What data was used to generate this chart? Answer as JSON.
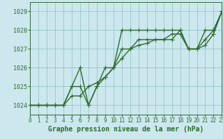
{
  "bg_color": "#cce8ee",
  "grid_color": "#99cccc",
  "line_color": "#2d6a2d",
  "title": "Graphe pression niveau de la mer (hPa)",
  "xlim": [
    0,
    23
  ],
  "ylim": [
    1023.5,
    1029.5
  ],
  "yticks": [
    1024,
    1025,
    1026,
    1027,
    1028,
    1029
  ],
  "xticks": [
    0,
    1,
    2,
    3,
    4,
    5,
    6,
    7,
    8,
    9,
    10,
    11,
    12,
    13,
    14,
    15,
    16,
    17,
    18,
    19,
    20,
    21,
    22,
    23
  ],
  "series": [
    [
      1024.0,
      1024.0,
      1024.0,
      1024.0,
      1024.0,
      1025.0,
      1026.0,
      1024.0,
      1025.0,
      1026.0,
      1026.0,
      1028.0,
      1028.0,
      1028.0,
      1028.0,
      1028.0,
      1028.0,
      1028.0,
      1028.0,
      1027.0,
      1027.0,
      1028.0,
      1028.0,
      1029.0
    ],
    [
      1024.0,
      1024.0,
      1024.0,
      1024.0,
      1024.0,
      1025.0,
      1025.0,
      1024.0,
      1025.0,
      1025.5,
      1026.0,
      1027.0,
      1027.0,
      1027.5,
      1027.5,
      1027.5,
      1027.5,
      1027.5,
      1028.0,
      1027.0,
      1027.0,
      1027.5,
      1028.0,
      1029.0
    ],
    [
      1024.0,
      1024.0,
      1024.0,
      1024.0,
      1024.0,
      1024.5,
      1024.5,
      1025.0,
      1025.2,
      1025.5,
      1026.0,
      1026.5,
      1027.0,
      1027.2,
      1027.3,
      1027.5,
      1027.5,
      1027.8,
      1027.8,
      1027.0,
      1027.0,
      1027.2,
      1027.8,
      1029.0
    ]
  ],
  "marker": "+",
  "markersize": 4,
  "linewidth": 1.0,
  "title_fontsize": 7.0,
  "tick_fontsize": 5.5
}
